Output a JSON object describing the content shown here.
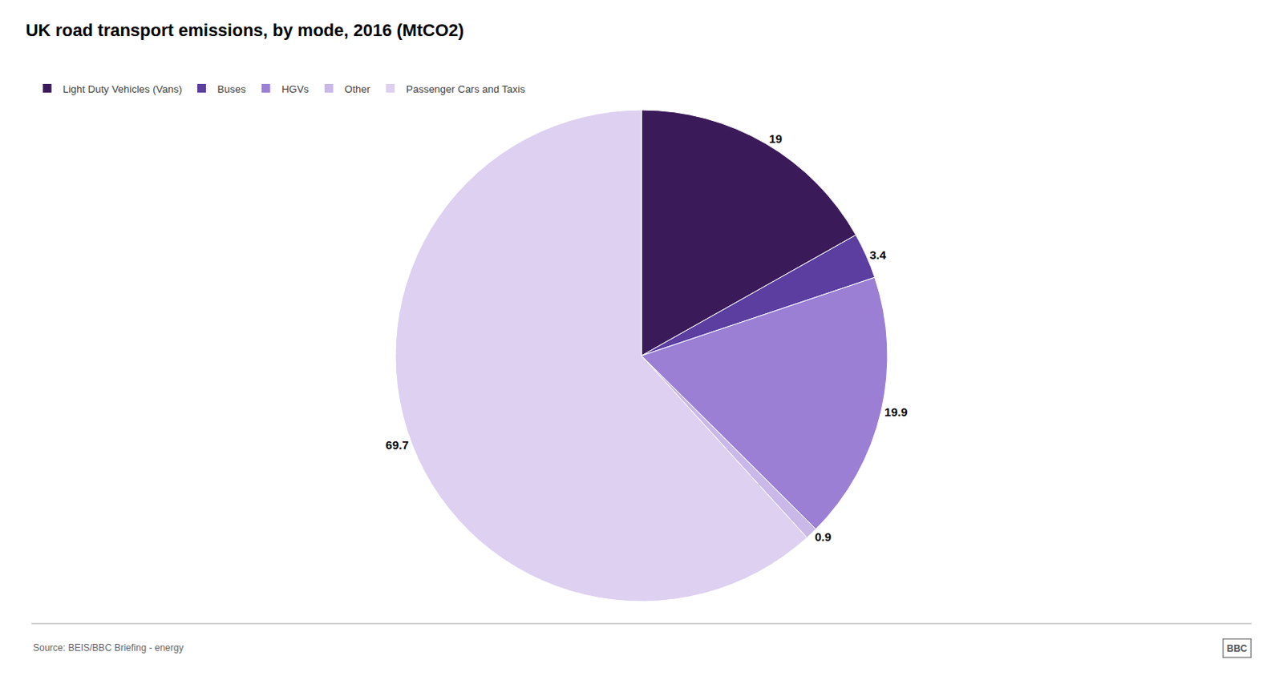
{
  "chart_data": {
    "type": "pie",
    "title": "UK road transport emissions, by mode, 2016 (MtCO2)",
    "categories": [
      "Light Duty Vehicles (Vans)",
      "Buses",
      "HGVs",
      "Other",
      "Passenger Cars and Taxis"
    ],
    "values": [
      19,
      3.4,
      19.9,
      0.9,
      69.7
    ],
    "colors": [
      "#3b1a5a",
      "#5b3ea0",
      "#9b7fd4",
      "#c9b8e8",
      "#ddd0f0"
    ],
    "data_labels": true,
    "legend": "upper left",
    "annotations": [
      "Source: BEIS/BBC Briefing - energy",
      "BBC"
    ]
  }
}
